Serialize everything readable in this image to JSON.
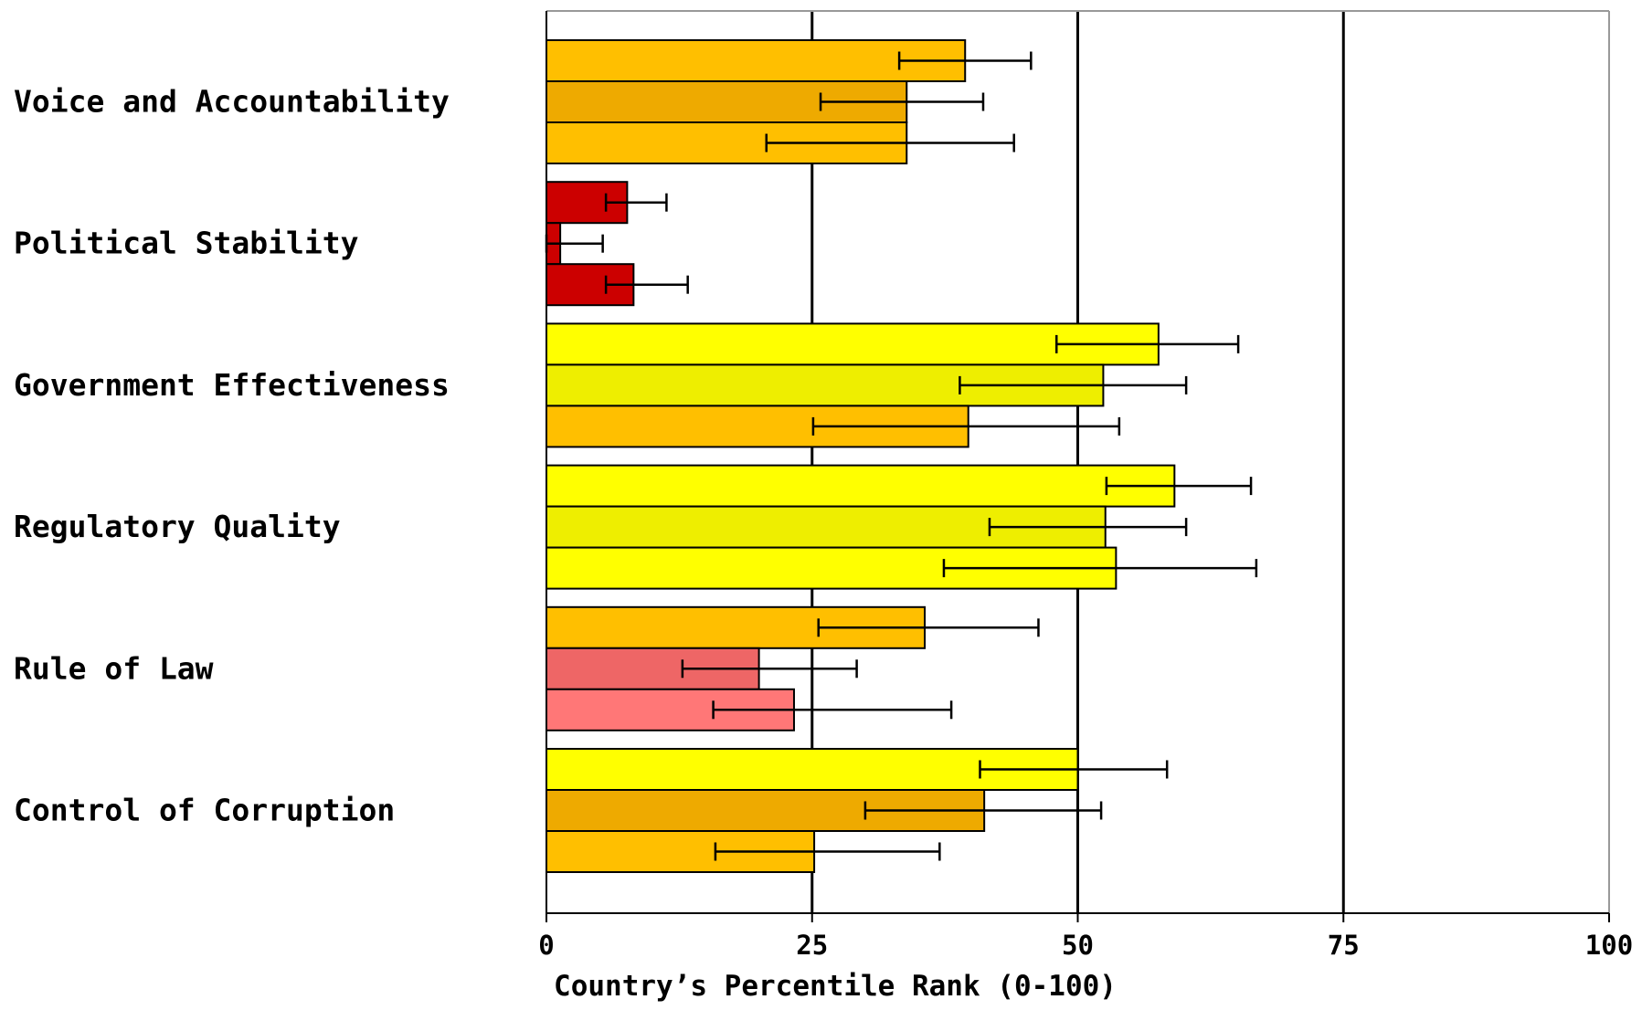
{
  "chart_data": {
    "type": "bar",
    "orientation": "horizontal",
    "categories": [
      "Voice and Accountability",
      "Political Stability",
      "Government Effectiveness",
      "Regulatory Quality",
      "Rule of Law",
      "Control of Corruption"
    ],
    "series": [
      {
        "values": [
          39.4,
          7.6,
          57.6,
          59.1,
          35.6,
          50.0
        ],
        "lower": [
          33.2,
          5.6,
          48.0,
          52.7,
          25.6,
          40.8
        ],
        "upper": [
          45.6,
          11.3,
          65.1,
          66.3,
          46.3,
          58.4
        ],
        "colors": [
          "#ffbf00",
          "#cc0000",
          "#ffff00",
          "#ffff00",
          "#ffbf00",
          "#ffff00"
        ]
      },
      {
        "values": [
          33.9,
          1.3,
          52.4,
          52.6,
          20.0,
          41.2
        ],
        "lower": [
          25.8,
          0.0,
          38.9,
          41.7,
          12.8,
          30.0
        ],
        "upper": [
          41.1,
          5.3,
          60.2,
          60.2,
          29.2,
          52.2
        ],
        "colors": [
          "#eeaa00",
          "#cc0000",
          "#eeee00",
          "#eeee00",
          "#ee6666",
          "#eeaa00"
        ]
      },
      {
        "values": [
          33.9,
          8.2,
          39.7,
          53.6,
          23.3,
          25.2
        ],
        "lower": [
          20.7,
          5.6,
          25.1,
          37.4,
          15.7,
          15.9
        ],
        "upper": [
          44.0,
          13.3,
          53.9,
          66.8,
          38.1,
          37.0
        ],
        "colors": [
          "#ffbf00",
          "#cc0000",
          "#ffbf00",
          "#ffff00",
          "#ff7777",
          "#ffbf00"
        ]
      }
    ],
    "xlim": [
      0,
      100
    ],
    "xticks": [
      "0",
      "25",
      "50",
      "75",
      "100"
    ],
    "xlabel": "Country’s Percentile Rank (0-100)",
    "ylabel": "",
    "title": "",
    "grid": "vertical",
    "legend": "none",
    "gridline_color": "#000000",
    "plot_border_color": "#999999"
  }
}
